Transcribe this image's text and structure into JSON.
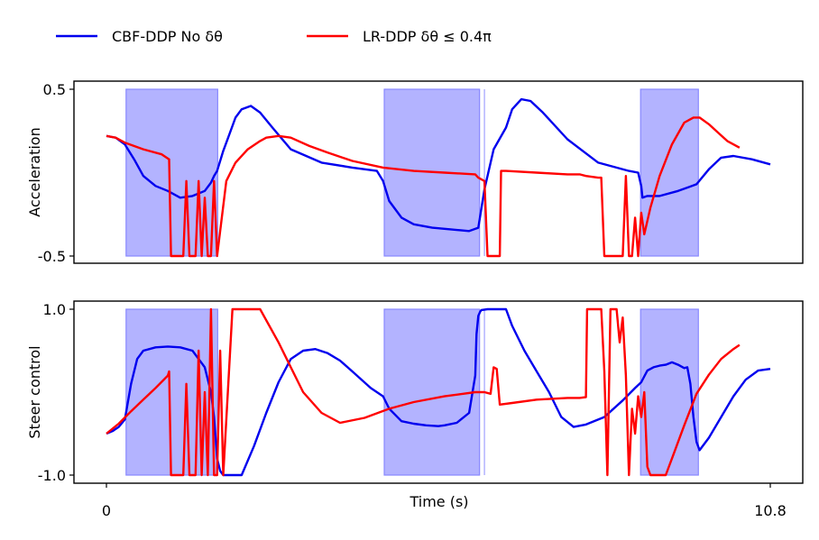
{
  "chart_data": {
    "type": "line",
    "legend": {
      "placement": "top-left",
      "entries": [
        {
          "label": "CBF-DDP No δθ",
          "color": "#0000ee"
        },
        {
          "label": "LR-DDP δθ ≤ 0.4π",
          "color": "#ff0000"
        }
      ]
    },
    "shading": {
      "color": "#b3b3ff",
      "edge_color": "#8888ff",
      "intervals": [
        [
          0.32,
          1.81
        ],
        [
          4.52,
          6.07
        ],
        [
          8.69,
          9.63
        ]
      ],
      "thin_line_x": 6.15
    },
    "xlabel": "Time (s)",
    "xlim": [
      0,
      10.8
    ],
    "xticks": [
      {
        "value": 0,
        "label": "0"
      },
      {
        "value": 10.8,
        "label": "10.8"
      }
    ],
    "panels": [
      {
        "ylabel": "Acceleration",
        "ylim": [
          -0.5,
          0.5
        ],
        "yticks": [
          {
            "value": 0.5,
            "label": "0.5"
          },
          {
            "value": -0.5,
            "label": "-0.5"
          }
        ],
        "series": [
          {
            "name": "CBF-DDP No δθ",
            "color": "#0000ee",
            "x": [
              0,
              0.15,
              0.3,
              0.45,
              0.6,
              0.8,
              1.0,
              1.2,
              1.4,
              1.6,
              1.7,
              1.75,
              1.8,
              1.9,
              2.0,
              2.1,
              2.2,
              2.35,
              2.5,
              2.7,
              3.0,
              3.5,
              4.0,
              4.4,
              4.5,
              4.6,
              4.8,
              5.0,
              5.3,
              5.6,
              5.9,
              6.05,
              6.15,
              6.3,
              6.5,
              6.6,
              6.75,
              6.9,
              7.1,
              7.5,
              8.0,
              8.5,
              8.65,
              8.7,
              8.72,
              8.8,
              9.0,
              9.3,
              9.6,
              9.8,
              10.0,
              10.2,
              10.5,
              10.8
            ],
            "y": [
              0.22,
              0.21,
              0.17,
              0.08,
              -0.02,
              -0.08,
              -0.11,
              -0.15,
              -0.14,
              -0.11,
              -0.06,
              -0.02,
              0.01,
              0.13,
              0.23,
              0.33,
              0.38,
              0.4,
              0.36,
              0.27,
              0.14,
              0.06,
              0.03,
              0.01,
              -0.05,
              -0.17,
              -0.27,
              -0.31,
              -0.33,
              -0.34,
              -0.35,
              -0.33,
              -0.1,
              0.14,
              0.27,
              0.38,
              0.44,
              0.43,
              0.36,
              0.2,
              0.06,
              0.01,
              0.0,
              -0.08,
              -0.15,
              -0.14,
              -0.14,
              -0.11,
              -0.07,
              0.02,
              0.09,
              0.1,
              0.08,
              0.05
            ]
          },
          {
            "name": "LR-DDP δθ ≤ 0.4π",
            "color": "#ff0000",
            "x": [
              0,
              0.15,
              0.3,
              0.6,
              0.9,
              1.02,
              1.05,
              1.2,
              1.25,
              1.3,
              1.35,
              1.45,
              1.5,
              1.55,
              1.6,
              1.65,
              1.7,
              1.75,
              1.8,
              1.95,
              2.1,
              2.3,
              2.5,
              2.6,
              2.8,
              3.0,
              3.3,
              3.6,
              4.0,
              4.5,
              5.0,
              5.5,
              6.0,
              6.05,
              6.15,
              6.2,
              6.3,
              6.35,
              6.4,
              6.42,
              6.5,
              7.0,
              7.5,
              7.7,
              7.8,
              8.0,
              8.05,
              8.1,
              8.15,
              8.2,
              8.3,
              8.4,
              8.45,
              8.5,
              8.55,
              8.6,
              8.65,
              8.7,
              8.75,
              8.85,
              9.0,
              9.2,
              9.4,
              9.55,
              9.65,
              9.8,
              9.95,
              10.1,
              10.3
            ],
            "y": [
              0.22,
              0.21,
              0.18,
              0.14,
              0.11,
              0.08,
              -0.5,
              -0.5,
              -0.5,
              -0.05,
              -0.5,
              -0.5,
              -0.05,
              -0.5,
              -0.15,
              -0.5,
              -0.5,
              -0.05,
              -0.5,
              -0.05,
              0.06,
              0.14,
              0.19,
              0.21,
              0.22,
              0.21,
              0.16,
              0.12,
              0.07,
              0.03,
              0.01,
              0.0,
              -0.01,
              -0.03,
              -0.05,
              -0.5,
              -0.5,
              -0.5,
              -0.5,
              0.01,
              0.01,
              0.0,
              -0.01,
              -0.01,
              -0.02,
              -0.03,
              -0.03,
              -0.5,
              -0.5,
              -0.5,
              -0.5,
              -0.5,
              -0.02,
              -0.5,
              -0.5,
              -0.27,
              -0.5,
              -0.24,
              -0.37,
              -0.21,
              -0.02,
              0.17,
              0.3,
              0.33,
              0.33,
              0.29,
              0.24,
              0.19,
              0.15
            ]
          }
        ]
      },
      {
        "ylabel": "Steer control",
        "ylim": [
          -1.0,
          1.0
        ],
        "yticks": [
          {
            "value": 1.0,
            "label": "1.0"
          },
          {
            "value": -1.0,
            "label": "-1.0"
          }
        ],
        "series": [
          {
            "name": "CBF-DDP No δθ",
            "color": "#0000ee",
            "x": [
              0,
              0.1,
              0.2,
              0.3,
              0.4,
              0.5,
              0.6,
              0.8,
              1.0,
              1.2,
              1.4,
              1.5,
              1.6,
              1.7,
              1.75,
              1.8,
              1.85,
              1.9,
              2.0,
              2.1,
              2.2,
              2.4,
              2.6,
              2.8,
              3.0,
              3.2,
              3.4,
              3.6,
              3.8,
              4.0,
              4.3,
              4.5,
              4.6,
              4.8,
              5.0,
              5.2,
              5.4,
              5.5,
              5.7,
              5.9,
              6.0,
              6.02,
              6.05,
              6.08,
              6.1,
              6.2,
              6.3,
              6.5,
              6.6,
              6.8,
              7.0,
              7.2,
              7.4,
              7.6,
              7.8,
              8.1,
              8.4,
              8.6,
              8.7,
              8.8,
              8.9,
              9.0,
              9.1,
              9.2,
              9.3,
              9.4,
              9.45,
              9.5,
              9.55,
              9.6,
              9.65,
              9.8,
              10.0,
              10.2,
              10.4,
              10.6,
              10.8
            ],
            "y": [
              -0.5,
              -0.47,
              -0.42,
              -0.33,
              0.1,
              0.4,
              0.5,
              0.54,
              0.55,
              0.54,
              0.5,
              0.4,
              0.3,
              0.0,
              -0.3,
              -0.8,
              -0.95,
              -1.0,
              -1.0,
              -1.0,
              -1.0,
              -0.65,
              -0.25,
              0.12,
              0.4,
              0.5,
              0.52,
              0.47,
              0.38,
              0.25,
              0.05,
              -0.05,
              -0.2,
              -0.35,
              -0.38,
              -0.4,
              -0.41,
              -0.4,
              -0.37,
              -0.25,
              0.2,
              0.7,
              0.92,
              0.97,
              0.99,
              1.0,
              1.0,
              1.0,
              0.8,
              0.5,
              0.25,
              0.0,
              -0.3,
              -0.42,
              -0.39,
              -0.3,
              -0.1,
              0.05,
              0.12,
              0.26,
              0.3,
              0.32,
              0.33,
              0.36,
              0.33,
              0.29,
              0.3,
              0.1,
              -0.3,
              -0.6,
              -0.7,
              -0.55,
              -0.3,
              -0.05,
              0.15,
              0.26,
              0.28
            ]
          },
          {
            "name": "LR-DDP δθ ≤ 0.4π",
            "color": "#ff0000",
            "x": [
              0,
              0.2,
              0.4,
              0.6,
              0.8,
              1.0,
              1.02,
              1.05,
              1.2,
              1.25,
              1.3,
              1.35,
              1.45,
              1.5,
              1.55,
              1.6,
              1.65,
              1.7,
              1.75,
              1.8,
              1.85,
              1.9,
              2.05,
              2.1,
              2.3,
              2.5,
              2.8,
              3.0,
              3.2,
              3.5,
              3.8,
              4.2,
              4.6,
              5.0,
              5.5,
              6.0,
              6.1,
              6.15,
              6.25,
              6.3,
              6.35,
              6.4,
              6.6,
              7.0,
              7.5,
              7.7,
              7.8,
              7.82,
              7.85,
              8.05,
              8.1,
              8.15,
              8.2,
              8.3,
              8.35,
              8.4,
              8.45,
              8.5,
              8.55,
              8.6,
              8.65,
              8.7,
              8.75,
              8.8,
              8.85,
              8.9,
              9.0,
              9.1,
              9.2,
              9.4,
              9.6,
              9.8,
              10.0,
              10.2,
              10.3
            ],
            "y": [
              -0.5,
              -0.38,
              -0.23,
              -0.09,
              0.05,
              0.2,
              0.25,
              -1.0,
              -1.0,
              -1.0,
              0.1,
              -1.0,
              -1.0,
              0.5,
              -1.0,
              0.0,
              -1.0,
              1.0,
              -1.0,
              -1.0,
              0.5,
              -1.0,
              1.0,
              1.0,
              1.0,
              1.0,
              0.6,
              0.3,
              0.0,
              -0.25,
              -0.37,
              -0.31,
              -0.2,
              -0.12,
              -0.05,
              0.0,
              0.0,
              0.0,
              -0.02,
              0.3,
              0.28,
              -0.15,
              -0.13,
              -0.09,
              -0.07,
              -0.07,
              -0.06,
              1.0,
              1.0,
              1.0,
              0.25,
              -1.0,
              1.0,
              1.0,
              0.6,
              0.9,
              0.2,
              -1.0,
              -0.2,
              -0.5,
              -0.05,
              -0.3,
              0.0,
              -0.9,
              -1.0,
              -1.0,
              -1.0,
              -1.0,
              -0.8,
              -0.4,
              -0.02,
              0.21,
              0.4,
              0.52,
              0.57
            ]
          }
        ]
      }
    ]
  }
}
